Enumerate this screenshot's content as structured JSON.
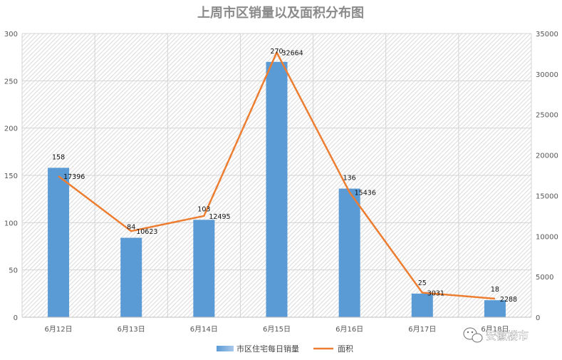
{
  "chart_data": {
    "type": "bar",
    "title": "上周市区销量以及面积分布图",
    "categories": [
      "6月12日",
      "6月13日",
      "6月14日",
      "6月15日",
      "6月16日",
      "6月17日",
      "6月18日"
    ],
    "series": [
      {
        "name": "市区住宅每日销量",
        "type": "bar",
        "axis": "left",
        "color": "#5b9bd5",
        "values": [
          158,
          84,
          103,
          270,
          136,
          25,
          18
        ]
      },
      {
        "name": "面积",
        "type": "line",
        "axis": "right",
        "color": "#ed7d31",
        "values": [
          17396,
          10623,
          12495,
          32664,
          15436,
          3031,
          2288
        ]
      }
    ],
    "y_left": {
      "ylim": [
        0,
        300
      ],
      "ticks": [
        0,
        50,
        100,
        150,
        200,
        250,
        300
      ]
    },
    "y_right": {
      "ylim": [
        0,
        35000
      ],
      "ticks": [
        0,
        5000,
        10000,
        15000,
        20000,
        25000,
        30000,
        35000
      ]
    },
    "grid": true,
    "legend": "bottom"
  },
  "watermark": {
    "icon": "wechat-icon",
    "text": "安徽楼市"
  }
}
